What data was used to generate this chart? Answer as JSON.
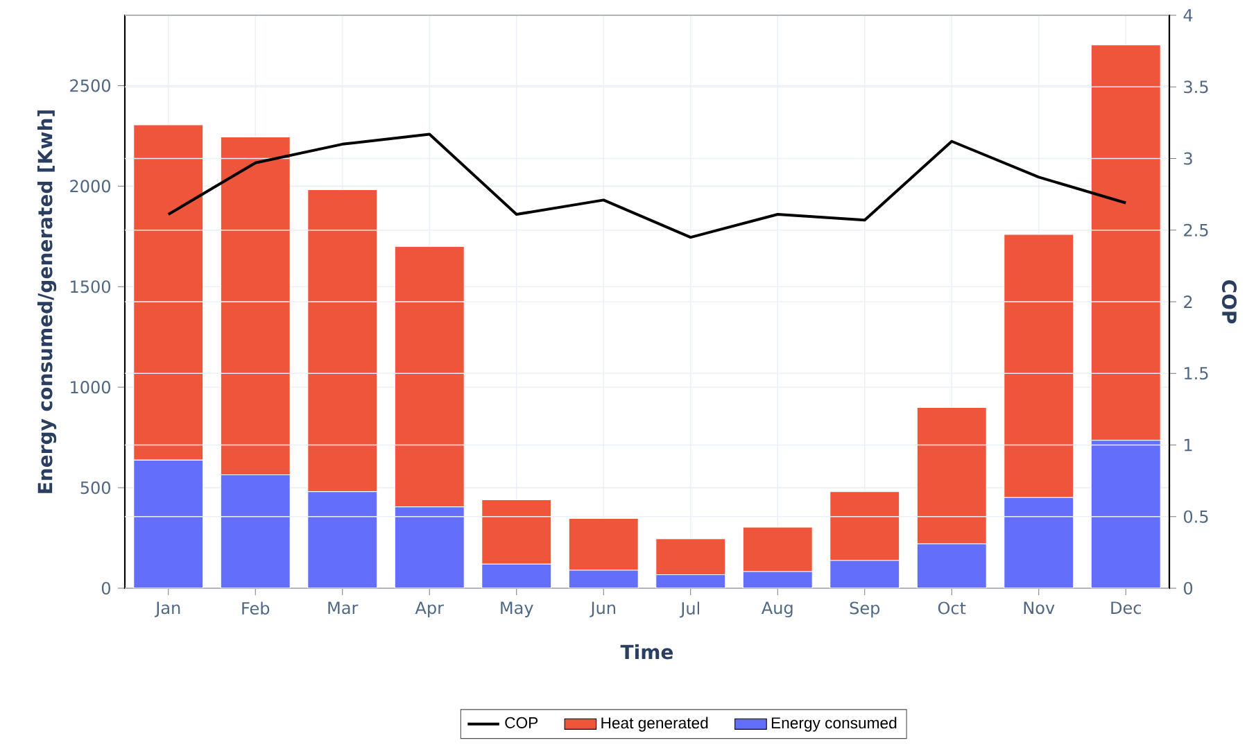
{
  "chart_data": {
    "type": "bar",
    "stacked": true,
    "xlabel": "Time",
    "ylabel": "Energy consumed/generated [Kwh]",
    "y2label": "COP",
    "categories": [
      "Jan",
      "Feb",
      "Mar",
      "Apr",
      "May",
      "Jun",
      "Jul",
      "Aug",
      "Sep",
      "Oct",
      "Nov",
      "Dec"
    ],
    "series": [
      {
        "name": "Energy consumed",
        "color": "#636efa",
        "values": [
          637,
          564,
          481,
          405,
          120,
          90,
          67,
          83,
          138,
          221,
          451,
          736
        ]
      },
      {
        "name": "Heat generated",
        "color": "#ef553b",
        "values": [
          1668,
          1681,
          1501,
          1295,
          320,
          257,
          179,
          221,
          343,
          678,
          1309,
          1967
        ]
      },
      {
        "name": "COP",
        "type": "line",
        "axis": "y2",
        "color": "#000000",
        "values": [
          2.61,
          2.97,
          3.1,
          3.17,
          2.61,
          2.71,
          2.45,
          2.61,
          2.57,
          3.12,
          2.87,
          2.69
        ]
      }
    ],
    "ylim": [
      0,
      2850
    ],
    "yticks": [
      0,
      500,
      1000,
      1500,
      2000,
      2500
    ],
    "y2lim": [
      0,
      4
    ],
    "y2ticks": [
      0,
      0.5,
      1,
      1.5,
      2,
      2.5,
      3,
      3.5,
      4
    ],
    "grid": true,
    "legend": "bottom",
    "marker": "none",
    "line_style": "solid"
  }
}
